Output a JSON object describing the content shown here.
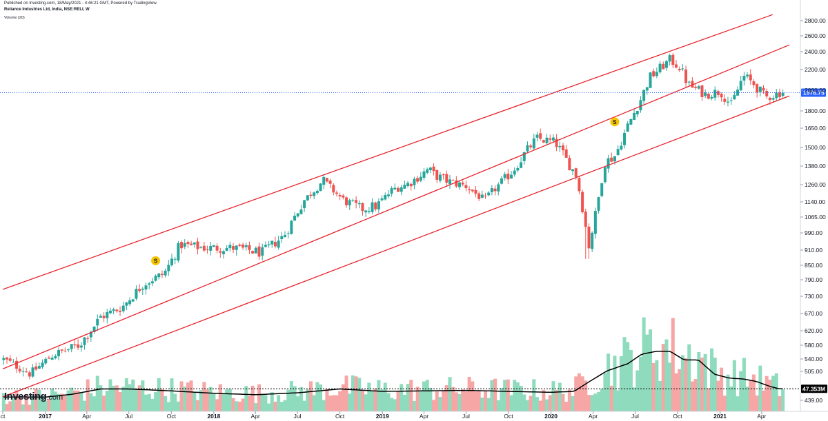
{
  "header": {
    "published": "Published on Investing.com, 18/May/2021 - 4:46:21 GMT, Powered by TradingView",
    "symbol_title": "Reliance Industries Ltd, India, NSE:RELI, W",
    "volume_label": "Volume (20)"
  },
  "logo": {
    "main": "Investing",
    "suffix": ".com"
  },
  "colors": {
    "up": "#26a69a",
    "up_fill": "#26a69a",
    "down": "#ef5350",
    "vol_up": "#8fdbbd",
    "vol_down": "#f7a6a6",
    "channel": "#e8242e",
    "last_price_line": "#2962ff",
    "price_tag": "#2962ff",
    "vol_ma": "#000000",
    "signal": "#f5c400"
  },
  "chart_data": {
    "type": "candlestick",
    "title": "Reliance Industries Ltd, India, NSE:RELI, W",
    "y_scale": "log",
    "ylim": [
      415,
      3000
    ],
    "y_ticks": [
      439.0,
      505.0,
      540.0,
      580.0,
      620.0,
      670.0,
      730.0,
      790.0,
      850.0,
      910.0,
      990.0,
      1065.0,
      1140.0,
      1260.0,
      1380.0,
      1500.0,
      1650.0,
      1800.0,
      2000.0,
      2200.0,
      2400.0,
      2600.0,
      2800.0
    ],
    "y_tick_labels": [
      "439.00",
      "505.00",
      "540.00",
      "580.00",
      "620.00",
      "670.00",
      "730.00",
      "790.00",
      "850.00",
      "910.00",
      "990.00",
      "1065.00",
      "1140.00",
      "1260.00",
      "1380.00",
      "1500.00",
      "1650.00",
      "1800.00",
      "2000.00",
      "2200.00",
      "2400.00",
      "2600.00",
      "2800.00"
    ],
    "x_ticks": [
      {
        "label": "ct",
        "date": "2016-10-01",
        "bold": false
      },
      {
        "label": "2017",
        "date": "2017-01-01",
        "bold": true
      },
      {
        "label": "Apr",
        "date": "2017-04-01",
        "bold": false
      },
      {
        "label": "Jul",
        "date": "2017-07-01",
        "bold": false
      },
      {
        "label": "Oct",
        "date": "2017-10-01",
        "bold": false
      },
      {
        "label": "2018",
        "date": "2018-01-01",
        "bold": true
      },
      {
        "label": "Apr",
        "date": "2018-04-01",
        "bold": false
      },
      {
        "label": "Jul",
        "date": "2018-07-01",
        "bold": false
      },
      {
        "label": "Oct",
        "date": "2018-10-01",
        "bold": false
      },
      {
        "label": "2019",
        "date": "2019-01-01",
        "bold": true
      },
      {
        "label": "Apr",
        "date": "2019-04-01",
        "bold": false
      },
      {
        "label": "Jul",
        "date": "2019-07-01",
        "bold": false
      },
      {
        "label": "Oct",
        "date": "2019-10-01",
        "bold": false
      },
      {
        "label": "2020",
        "date": "2020-01-01",
        "bold": true
      },
      {
        "label": "Apr",
        "date": "2020-04-01",
        "bold": false
      },
      {
        "label": "Jul",
        "date": "2020-07-01",
        "bold": false
      },
      {
        "label": "Oct",
        "date": "2020-10-01",
        "bold": false
      },
      {
        "label": "2021",
        "date": "2021-01-01",
        "bold": true
      },
      {
        "label": "Apr",
        "date": "2021-04-01",
        "bold": false
      }
    ],
    "last_price": 1976.75,
    "last_price_label": "1976.75",
    "volume_label": "47.353M",
    "volume_ma_label": "Volume (20)",
    "channel_lines": [
      {
        "name": "upper",
        "start": {
          "date": "2016-10-01",
          "price": 755
        },
        "end": {
          "date": "2021-04-25",
          "price": 2880
        }
      },
      {
        "name": "middle",
        "start": {
          "date": "2016-10-01",
          "price": 512
        },
        "end": {
          "date": "2021-05-31",
          "price": 2485
        }
      },
      {
        "name": "lower",
        "start": {
          "date": "2016-10-01",
          "price": 447
        },
        "end": {
          "date": "2021-05-31",
          "price": 1945
        }
      }
    ],
    "signals": [
      {
        "label": "S",
        "date": "2017-08-28",
        "price": 868
      },
      {
        "label": "S",
        "date": "2020-05-18",
        "price": 1705
      }
    ],
    "closes": [
      {
        "date": "2016-10-01",
        "close": 540
      },
      {
        "date": "2016-12-01",
        "close": 500
      },
      {
        "date": "2017-01-15",
        "close": 550
      },
      {
        "date": "2017-03-15",
        "close": 580
      },
      {
        "date": "2017-05-01",
        "close": 660
      },
      {
        "date": "2017-06-15",
        "close": 690
      },
      {
        "date": "2017-08-01",
        "close": 775
      },
      {
        "date": "2017-09-15",
        "close": 815
      },
      {
        "date": "2017-10-20",
        "close": 935
      },
      {
        "date": "2017-12-15",
        "close": 920
      },
      {
        "date": "2018-02-15",
        "close": 920
      },
      {
        "date": "2018-04-15",
        "close": 900
      },
      {
        "date": "2018-06-01",
        "close": 975
      },
      {
        "date": "2018-07-15",
        "close": 1150
      },
      {
        "date": "2018-08-25",
        "close": 1290
      },
      {
        "date": "2018-10-10",
        "close": 1150
      },
      {
        "date": "2018-11-15",
        "close": 1105
      },
      {
        "date": "2018-12-20",
        "close": 1120
      },
      {
        "date": "2019-01-25",
        "close": 1230
      },
      {
        "date": "2019-03-01",
        "close": 1270
      },
      {
        "date": "2019-04-10",
        "close": 1360
      },
      {
        "date": "2019-04-25",
        "close": 1320
      },
      {
        "date": "2019-05-25",
        "close": 1280
      },
      {
        "date": "2019-07-01",
        "close": 1250
      },
      {
        "date": "2019-08-10",
        "close": 1150
      },
      {
        "date": "2019-09-01",
        "close": 1230
      },
      {
        "date": "2019-10-10",
        "close": 1350
      },
      {
        "date": "2019-11-05",
        "close": 1460
      },
      {
        "date": "2019-12-01",
        "close": 1570
      },
      {
        "date": "2020-01-10",
        "close": 1540
      },
      {
        "date": "2020-02-01",
        "close": 1430
      },
      {
        "date": "2020-02-25",
        "close": 1320
      },
      {
        "date": "2020-03-23",
        "close": 930
      },
      {
        "date": "2020-04-10",
        "close": 1120
      },
      {
        "date": "2020-04-25",
        "close": 1400
      },
      {
        "date": "2020-05-20",
        "close": 1450
      },
      {
        "date": "2020-06-15",
        "close": 1670
      },
      {
        "date": "2020-07-10",
        "close": 1880
      },
      {
        "date": "2020-08-01",
        "close": 2120
      },
      {
        "date": "2020-09-15",
        "close": 2310
      },
      {
        "date": "2020-10-05",
        "close": 2230
      },
      {
        "date": "2020-10-25",
        "close": 2050
      },
      {
        "date": "2020-12-01",
        "close": 1960
      },
      {
        "date": "2021-01-01",
        "close": 1990
      },
      {
        "date": "2021-01-25",
        "close": 1860
      },
      {
        "date": "2021-02-20",
        "close": 2140
      },
      {
        "date": "2021-03-15",
        "close": 2060
      },
      {
        "date": "2021-04-10",
        "close": 1930
      },
      {
        "date": "2021-05-10",
        "close": 1976.75
      }
    ],
    "volume_ma_points": [
      {
        "date": "2016-10-01",
        "value": 30
      },
      {
        "date": "2017-01-01",
        "value": 30
      },
      {
        "date": "2017-03-01",
        "value": 36
      },
      {
        "date": "2017-05-01",
        "value": 47
      },
      {
        "date": "2017-07-01",
        "value": 47
      },
      {
        "date": "2017-10-01",
        "value": 43
      },
      {
        "date": "2018-01-01",
        "value": 38
      },
      {
        "date": "2018-04-01",
        "value": 35
      },
      {
        "date": "2018-07-01",
        "value": 39
      },
      {
        "date": "2018-10-01",
        "value": 47
      },
      {
        "date": "2019-01-01",
        "value": 42
      },
      {
        "date": "2019-04-01",
        "value": 43
      },
      {
        "date": "2019-07-01",
        "value": 44
      },
      {
        "date": "2019-10-01",
        "value": 42
      },
      {
        "date": "2020-01-01",
        "value": 40
      },
      {
        "date": "2020-02-20",
        "value": 42
      },
      {
        "date": "2020-03-20",
        "value": 60
      },
      {
        "date": "2020-05-01",
        "value": 85
      },
      {
        "date": "2020-06-15",
        "value": 100
      },
      {
        "date": "2020-07-15",
        "value": 120
      },
      {
        "date": "2020-08-15",
        "value": 126
      },
      {
        "date": "2020-09-15",
        "value": 126
      },
      {
        "date": "2020-10-15",
        "value": 108
      },
      {
        "date": "2020-11-15",
        "value": 108
      },
      {
        "date": "2020-12-20",
        "value": 78
      },
      {
        "date": "2021-01-20",
        "value": 70
      },
      {
        "date": "2021-02-20",
        "value": 68
      },
      {
        "date": "2021-03-20",
        "value": 63
      },
      {
        "date": "2021-04-20",
        "value": 52
      },
      {
        "date": "2021-05-10",
        "value": 47.35
      }
    ]
  }
}
